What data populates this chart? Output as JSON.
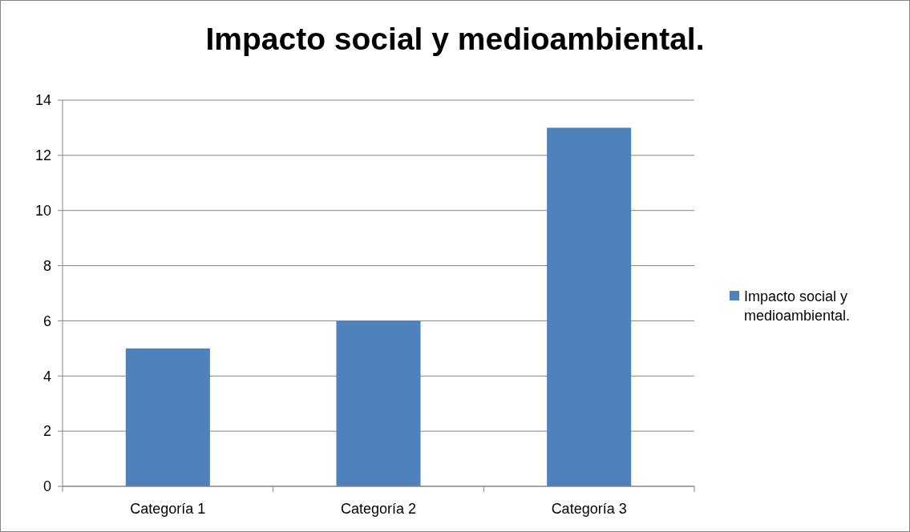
{
  "chart_data": {
    "type": "bar",
    "title": "Impacto social y medioambiental.",
    "categories": [
      "Categoría 1",
      "Categoría 2",
      "Categoría 3"
    ],
    "series": [
      {
        "name": "Impacto social y medioambiental.",
        "color": "#4f81bd",
        "values": [
          5,
          6,
          13
        ]
      }
    ],
    "ylim": [
      0,
      14
    ],
    "yticks": [
      0,
      2,
      4,
      6,
      8,
      10,
      12,
      14
    ],
    "grid": "y",
    "legend": "right"
  }
}
